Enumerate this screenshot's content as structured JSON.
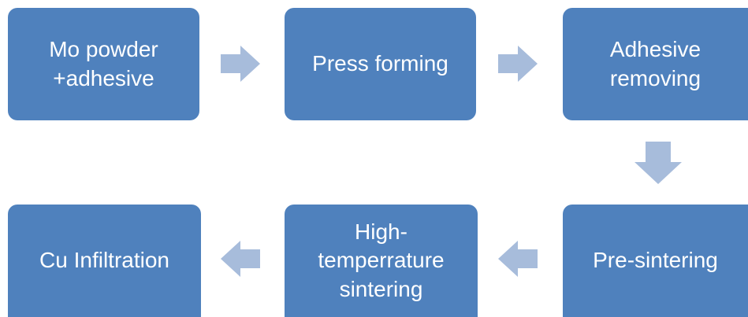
{
  "steps": [
    {
      "id": "mo-powder",
      "label": "Mo powder\n+adhesive"
    },
    {
      "id": "press-forming",
      "label": "Press forming"
    },
    {
      "id": "adhesive-removing",
      "label": "Adhesive\nremoving"
    },
    {
      "id": "pre-sintering",
      "label": "Pre-sintering"
    },
    {
      "id": "high-temp-sintering",
      "label": "High-\ntemperrature\nsintering"
    },
    {
      "id": "cu-infiltration",
      "label": "Cu Infiltration"
    }
  ],
  "colors": {
    "box": "#4f81bd",
    "arrow": "#a7bcdb",
    "text": "#ffffff"
  }
}
